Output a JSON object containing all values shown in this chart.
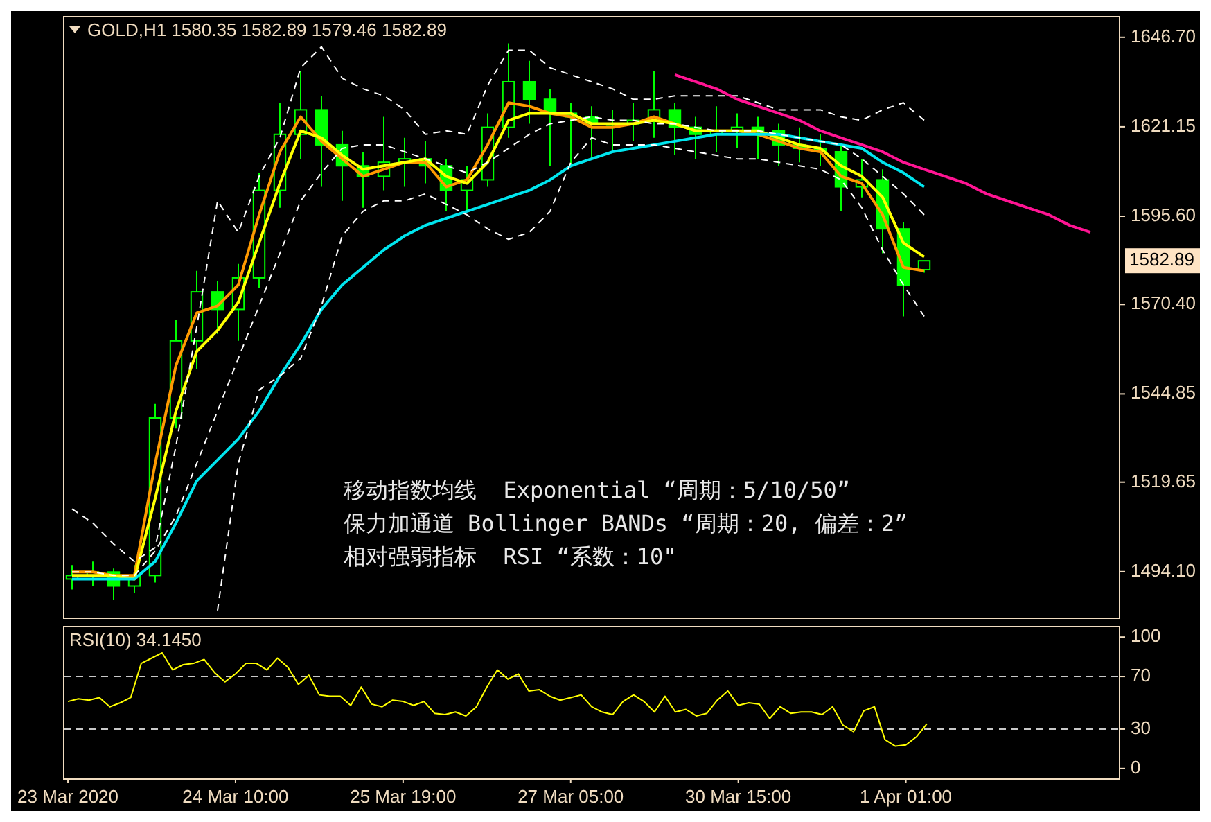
{
  "chart_data": [
    {
      "type": "candlestick",
      "title": "GOLD,H1 1580.35 1582.89 1579.46 1582.89",
      "color": "#00ff00",
      "categories": [
        null,
        null,
        null,
        null,
        null,
        null,
        null,
        null,
        null,
        null,
        null,
        null,
        null,
        null,
        null,
        null,
        null,
        null,
        null,
        null,
        null,
        null,
        null,
        null,
        null,
        null,
        null,
        null,
        null,
        null,
        null,
        null,
        null,
        null,
        null,
        null,
        null,
        null,
        null,
        null,
        null,
        null,
        null,
        null,
        null,
        null,
        null,
        null,
        null,
        null,
        null
      ],
      "ohlc": [
        [
          1492,
          1496,
          1489,
          1493
        ],
        [
          1493,
          1497,
          1490,
          1494
        ],
        [
          1494,
          1495,
          1486,
          1490
        ],
        [
          1490,
          1496,
          1488,
          1493
        ],
        [
          1493,
          1542,
          1491,
          1538
        ],
        [
          1538,
          1566,
          1535,
          1560
        ],
        [
          1560,
          1580,
          1552,
          1574
        ],
        [
          1574,
          1577,
          1562,
          1569
        ],
        [
          1569,
          1582,
          1560,
          1578
        ],
        [
          1578,
          1608,
          1575,
          1603
        ],
        [
          1603,
          1628,
          1598,
          1619
        ],
        [
          1619,
          1637,
          1612,
          1626
        ],
        [
          1626,
          1630,
          1604,
          1616
        ],
        [
          1616,
          1620,
          1600,
          1610
        ],
        [
          1610,
          1614,
          1598,
          1607
        ],
        [
          1607,
          1624,
          1603,
          1611
        ],
        [
          1611,
          1618,
          1604,
          1612
        ],
        [
          1612,
          1617,
          1605,
          1610
        ],
        [
          1610,
          1612,
          1597,
          1603
        ],
        [
          1603,
          1610,
          1597,
          1606
        ],
        [
          1606,
          1625,
          1604,
          1621
        ],
        [
          1621,
          1645,
          1618,
          1634
        ],
        [
          1634,
          1640,
          1622,
          1629
        ],
        [
          1629,
          1632,
          1610,
          1625
        ],
        [
          1625,
          1628,
          1610,
          1624
        ],
        [
          1624,
          1627,
          1612,
          1622
        ],
        [
          1622,
          1626,
          1614,
          1622
        ],
        [
          1622,
          1628,
          1617,
          1623
        ],
        [
          1623,
          1637,
          1618,
          1626
        ],
        [
          1626,
          1628,
          1613,
          1621
        ],
        [
          1621,
          1624,
          1612,
          1619
        ],
        [
          1619,
          1627,
          1614,
          1620
        ],
        [
          1620,
          1625,
          1615,
          1621
        ],
        [
          1621,
          1624,
          1612,
          1620
        ],
        [
          1620,
          1622,
          1610,
          1616
        ],
        [
          1616,
          1621,
          1611,
          1615
        ],
        [
          1615,
          1619,
          1610,
          1614
        ],
        [
          1614,
          1616,
          1597,
          1604
        ],
        [
          1604,
          1612,
          1601,
          1606
        ],
        [
          1606,
          1609,
          1585,
          1592
        ],
        [
          1592,
          1594,
          1567,
          1576
        ],
        [
          1580.35,
          1582.89,
          1579.46,
          1582.89
        ],
        null,
        null,
        null,
        null,
        null,
        null,
        null,
        null,
        null
      ],
      "series": [
        {
          "type": "line",
          "color": "#ff9900",
          "values": [
            1494,
            1494,
            1493,
            1493,
            1525,
            1553,
            1568,
            1570,
            1576,
            1596,
            1614,
            1624,
            1617,
            1612,
            1607,
            1609,
            1611,
            1611,
            1604,
            1606,
            1616,
            1628,
            1627,
            1625,
            1624,
            1621,
            1621,
            1622,
            1624,
            1622,
            1620,
            1620,
            1620,
            1619,
            1617,
            1615,
            1614,
            1607,
            1605,
            1596,
            1581,
            1580,
            null,
            null,
            null,
            null,
            null,
            null,
            null,
            null,
            null
          ]
        },
        {
          "type": "line",
          "color": "#ffff00",
          "values": [
            1493,
            1493,
            1493,
            1492,
            1515,
            1540,
            1557,
            1563,
            1571,
            1588,
            1605,
            1620,
            1618,
            1613,
            1609,
            1610,
            1611,
            1612,
            1607,
            1605,
            1611,
            1623,
            1625,
            1625,
            1625,
            1622,
            1622,
            1622,
            1623,
            1622,
            1620,
            1620,
            1620,
            1620,
            1618,
            1616,
            1615,
            1610,
            1607,
            1601,
            1588,
            1584,
            null,
            null,
            null,
            null,
            null,
            null,
            null,
            null,
            null
          ]
        },
        {
          "type": "line",
          "color": "#00e5ee",
          "values": [
            1492,
            1492,
            1492,
            1492,
            1497,
            1508,
            1520,
            1526,
            1532,
            1540,
            1550,
            1559,
            1569,
            1576,
            1581,
            1586,
            1590,
            1593,
            1595,
            1597,
            1599,
            1601,
            1603,
            1606,
            1610,
            1612,
            1614,
            1615,
            1616,
            1617,
            1618,
            1619,
            1619,
            1619,
            1619,
            1618,
            1617,
            1616,
            1615,
            1611,
            1608,
            1604,
            null,
            null,
            null,
            null,
            null,
            null,
            null,
            null,
            null
          ]
        },
        {
          "type": "line",
          "color": "#ffffff",
          "line_style": "dashed",
          "values": [
            1512,
            1508,
            1502,
            1497,
            1501,
            1530,
            1564,
            1600,
            1591,
            1607,
            1618,
            1638,
            1644,
            1635,
            1632,
            1630,
            1626,
            1619,
            1620,
            1619,
            1633,
            1643,
            1643,
            1638,
            1636,
            1634,
            1632,
            1629,
            1629,
            1630,
            1630,
            1630,
            1630,
            1628,
            1626,
            1626,
            1626,
            1624,
            1623,
            1626,
            1628,
            1623,
            null,
            null,
            null,
            null,
            null,
            null,
            null,
            null,
            null
          ]
        },
        {
          "type": "line",
          "color": "#ffffff",
          "line_style": "dashed",
          "values": [
            1494,
            1494,
            1493,
            1493,
            1500,
            1510,
            1525,
            1540,
            1555,
            1570,
            1585,
            1600,
            1608,
            1615,
            1616,
            1616,
            1614,
            1612,
            1610,
            1608,
            1611,
            1615,
            1619,
            1622,
            1623,
            1624,
            1623,
            1623,
            1622,
            1622,
            1621,
            1620,
            1620,
            1620,
            1619,
            1618,
            1617,
            1616,
            1612,
            1607,
            1602,
            1596,
            null,
            null,
            null,
            null,
            null,
            null,
            null,
            null,
            null
          ]
        },
        {
          "type": "line",
          "color": "#ffffff",
          "line_style": "dashed",
          "values": [
            null,
            null,
            null,
            null,
            null,
            null,
            null,
            1483,
            1525,
            1546,
            1550,
            1555,
            1570,
            1590,
            1597,
            1600,
            1600,
            1602,
            1599,
            1596,
            1592,
            1589,
            1591,
            1597,
            1611,
            1618,
            1616,
            1616,
            1616,
            1615,
            1614,
            1613,
            1612,
            1612,
            1611,
            1610,
            1609,
            1606,
            1598,
            1586,
            1576,
            1567,
            null,
            null,
            null,
            null,
            null,
            null,
            null,
            null,
            null
          ]
        },
        {
          "type": "line",
          "color": "#ff1493",
          "values": [
            null,
            null,
            null,
            null,
            null,
            null,
            null,
            null,
            null,
            null,
            null,
            null,
            null,
            null,
            null,
            null,
            null,
            null,
            null,
            null,
            null,
            null,
            null,
            null,
            null,
            null,
            null,
            null,
            null,
            1636,
            1634,
            1632,
            1629,
            1627,
            1625,
            1623,
            1620,
            1618,
            1616,
            1614,
            1611,
            1609,
            1607,
            1605,
            1602,
            1600,
            1598,
            1596,
            1593,
            1591,
            null
          ]
        }
      ],
      "ylim": [
        1480.8,
        1652.6
      ],
      "yticks": [
        {
          "value": 1494.1,
          "label": "1494.10"
        },
        {
          "value": 1519.65,
          "label": "1519.65"
        },
        {
          "value": 1544.85,
          "label": "1544.85"
        },
        {
          "value": 1570.4,
          "label": "1570.40"
        },
        {
          "value": 1595.6,
          "label": "1595.60"
        },
        {
          "value": 1621.15,
          "label": "1621.15"
        },
        {
          "value": 1646.7,
          "label": "1646.70"
        }
      ],
      "tick_labels": "y",
      "annotations": [
        "1582.89",
        "移动指数均线  Exponential “周期：5/10/50”",
        "保力加通道 Bollinger BANDs “周期：20, 偏差：2”",
        "相对强弱指标  RSI “系数：10\""
      ]
    },
    {
      "type": "line",
      "title": "RSI(10) 34.1450",
      "color": "#ffff00",
      "categories": [
        "23 Mar 2020",
        null,
        null,
        null,
        null,
        null,
        null,
        null,
        null,
        null,
        null,
        null,
        null,
        null,
        null,
        null,
        "24 Mar 10:00",
        null,
        null,
        null,
        null,
        null,
        null,
        null,
        null,
        null,
        null,
        null,
        null,
        null,
        null,
        null,
        "25 Mar 19:00",
        null,
        null,
        null,
        null,
        null,
        null,
        null,
        null,
        null,
        null,
        null,
        null,
        null,
        null,
        null,
        "27 Mar 05:00",
        null,
        null,
        null,
        null,
        null,
        null,
        null,
        null,
        null,
        null,
        null,
        null,
        null,
        null,
        null,
        "30 Mar 15:00",
        null,
        null,
        null,
        null,
        null,
        null,
        null,
        null,
        null,
        null,
        null,
        null,
        null,
        null,
        null,
        "1 Apr 01:00",
        null,
        null,
        null,
        null,
        null,
        null,
        null,
        null,
        null,
        null,
        null,
        null,
        null,
        null,
        null,
        null,
        null,
        null,
        null,
        null
      ],
      "values": [
        51,
        53,
        52,
        54,
        47,
        50,
        54,
        80,
        84,
        88,
        75,
        79,
        80,
        83,
        73,
        66,
        72,
        80,
        80,
        75,
        84,
        77,
        64,
        71,
        56,
        55,
        55,
        48,
        62,
        49,
        47,
        52,
        51,
        48,
        51,
        42,
        41,
        43,
        40,
        47,
        62,
        75,
        68,
        72,
        59,
        60,
        55,
        52,
        54,
        56,
        47,
        43,
        41,
        51,
        56,
        51,
        43,
        55,
        43,
        45,
        40,
        42,
        52,
        59,
        48,
        50,
        49,
        38,
        47,
        42,
        43,
        43,
        41,
        47,
        33,
        28,
        44,
        47,
        22,
        17,
        18,
        24,
        34,
        null,
        null,
        null,
        null,
        null,
        null,
        null,
        null,
        null,
        null,
        null,
        null,
        null,
        null,
        null,
        null,
        null,
        null
      ],
      "ylim": [
        -8,
        108
      ],
      "yticks": [
        0,
        30,
        70,
        100
      ],
      "ref_lines": [
        {
          "axis": "y",
          "value": 70,
          "line_style": "dashed",
          "color": "#c8c8c8"
        },
        {
          "axis": "y",
          "value": 30,
          "line_style": "dashed",
          "color": "#c8c8c8"
        }
      ]
    }
  ]
}
